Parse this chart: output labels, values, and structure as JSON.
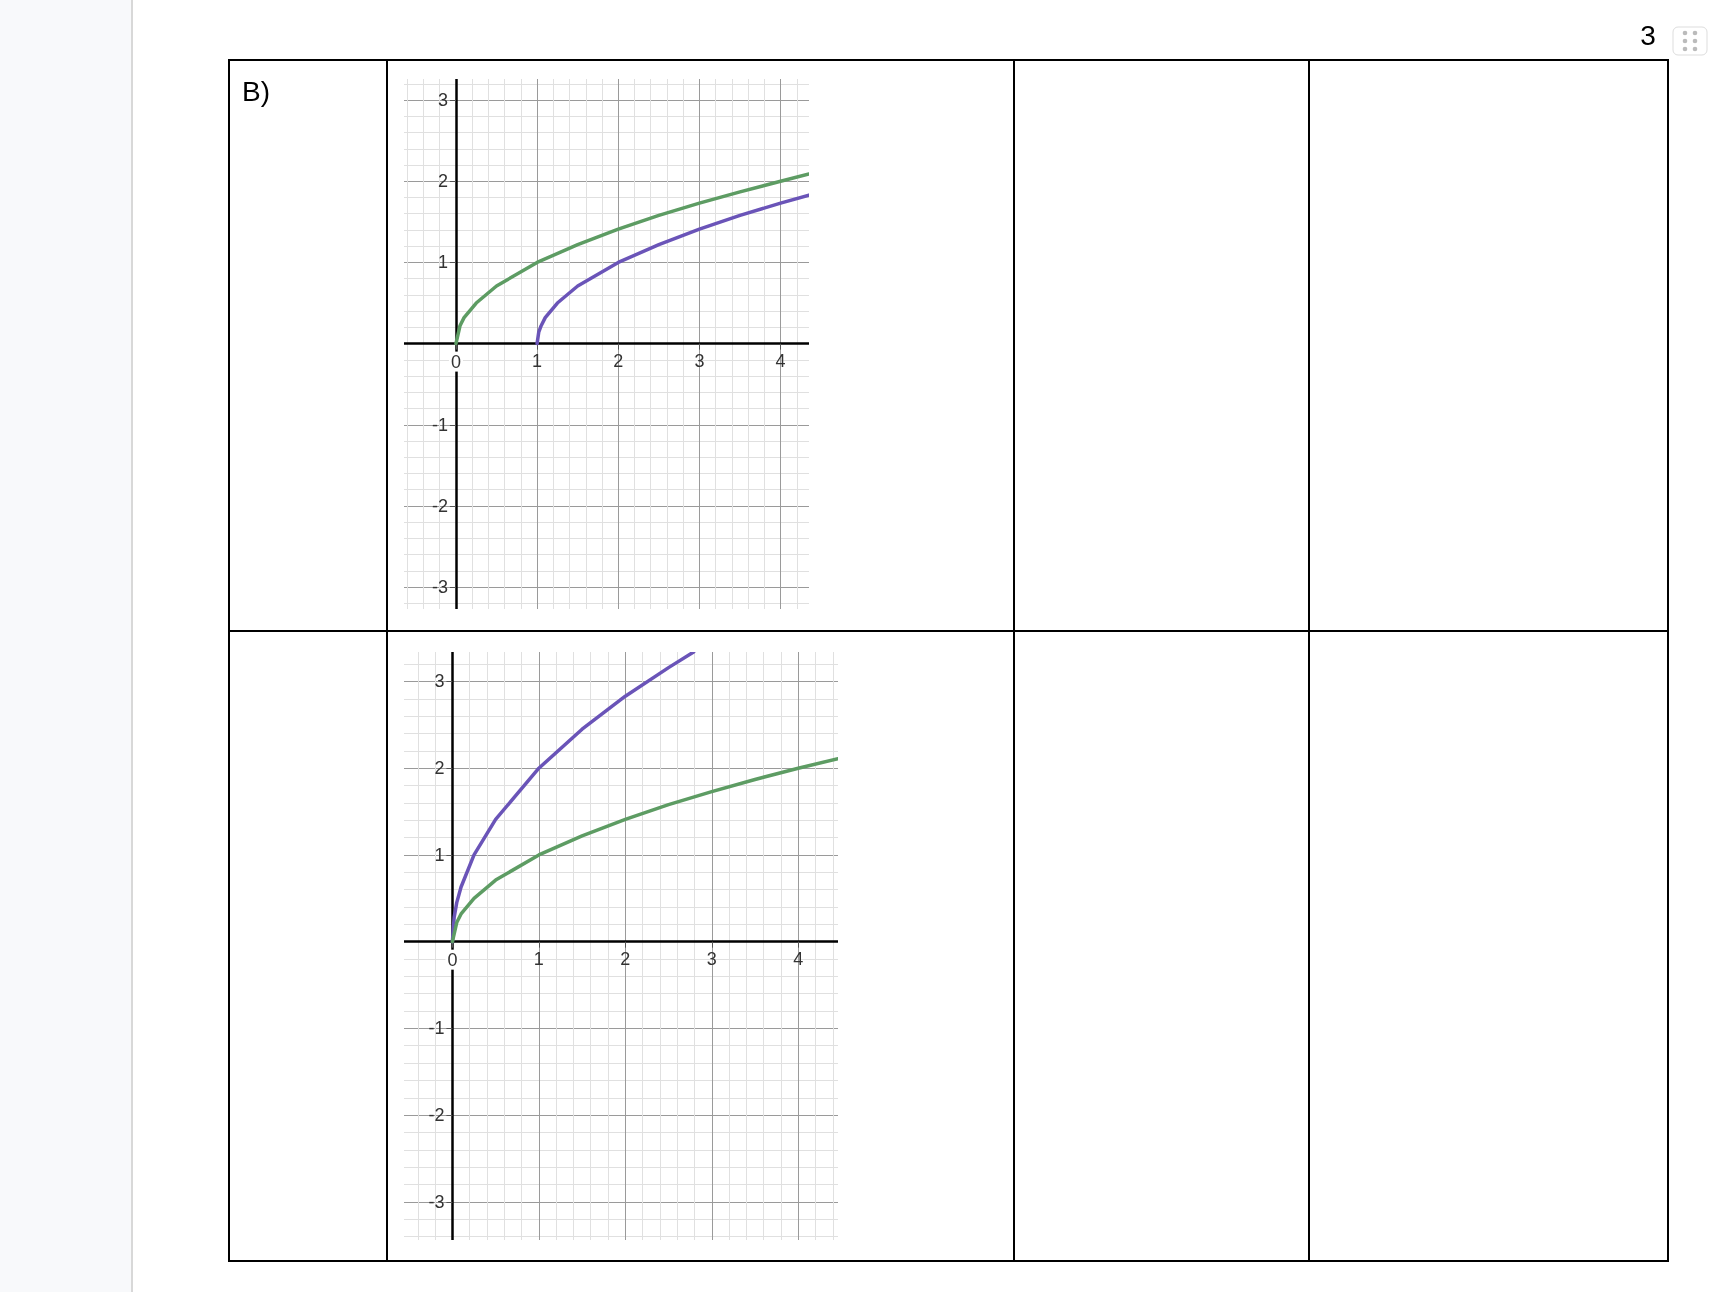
{
  "chart_data": [
    {
      "type": "line",
      "annotations": [
        "B)",
        "3"
      ],
      "xlim": [
        -0.64,
        4.35
      ],
      "ylim": [
        -3.27,
        3.26
      ],
      "xticks": [
        {
          "value": 0,
          "label": "0"
        },
        1,
        2,
        3,
        4
      ],
      "yticks": [
        -3,
        -2,
        -1,
        1,
        2,
        3
      ],
      "grid": true,
      "marker": "none",
      "line_style": "solid",
      "series": [
        {
          "color": "#5d9c63",
          "x": [
            0,
            0.05,
            0.1,
            0.25,
            0.5,
            1,
            1.5,
            2,
            2.5,
            3,
            3.5,
            4,
            4.35
          ],
          "values": [
            0,
            0.22,
            0.32,
            0.5,
            0.71,
            1,
            1.22,
            1.41,
            1.58,
            1.73,
            1.87,
            2,
            2.09
          ]
        },
        {
          "color": "#6a54b8",
          "x": [
            1,
            1.02,
            1.05,
            1.1,
            1.25,
            1.5,
            2,
            2.5,
            3,
            3.5,
            4,
            4.35
          ],
          "values": [
            0,
            0.14,
            0.22,
            0.32,
            0.5,
            0.71,
            1,
            1.22,
            1.41,
            1.58,
            1.73,
            1.83
          ]
        }
      ]
    },
    {
      "type": "line",
      "xlim": [
        -0.56,
        4.46
      ],
      "ylim": [
        -3.44,
        3.34
      ],
      "xticks": [
        {
          "value": 0,
          "label": "0"
        },
        1,
        2,
        3,
        4
      ],
      "yticks": [
        -3,
        -2,
        -1,
        1,
        2,
        3
      ],
      "grid": true,
      "marker": "none",
      "line_style": "solid",
      "series": [
        {
          "color": "#6a54b8",
          "x": [
            0,
            0.02,
            0.05,
            0.1,
            0.25,
            0.5,
            1,
            1.5,
            2,
            2.5,
            2.79
          ],
          "values": [
            0,
            0.28,
            0.45,
            0.63,
            1,
            1.41,
            2,
            2.45,
            2.83,
            3.16,
            3.34
          ]
        },
        {
          "color": "#5d9c63",
          "x": [
            0,
            0.05,
            0.1,
            0.25,
            0.5,
            1,
            1.5,
            2,
            2.5,
            3,
            3.5,
            4,
            4.46
          ],
          "values": [
            0,
            0.22,
            0.32,
            0.5,
            0.71,
            1,
            1.22,
            1.41,
            1.58,
            1.73,
            1.87,
            2,
            2.11
          ]
        }
      ]
    }
  ]
}
